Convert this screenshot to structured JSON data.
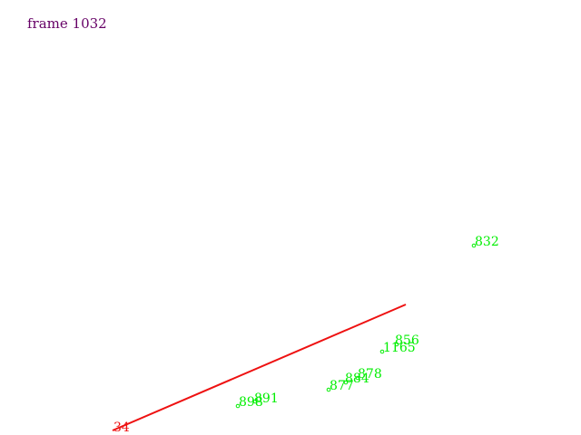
{
  "frame_label": "frame 1032",
  "colors": {
    "frame_label": "#660066",
    "point": "#00ee00",
    "track": "#ee1111"
  },
  "track": {
    "label": "34"
  },
  "points": [
    {
      "label": "832"
    },
    {
      "label": "856"
    },
    {
      "label": "1165"
    },
    {
      "label": "878"
    },
    {
      "label": "884"
    },
    {
      "label": "877"
    },
    {
      "label": "891"
    },
    {
      "label": "898"
    }
  ]
}
